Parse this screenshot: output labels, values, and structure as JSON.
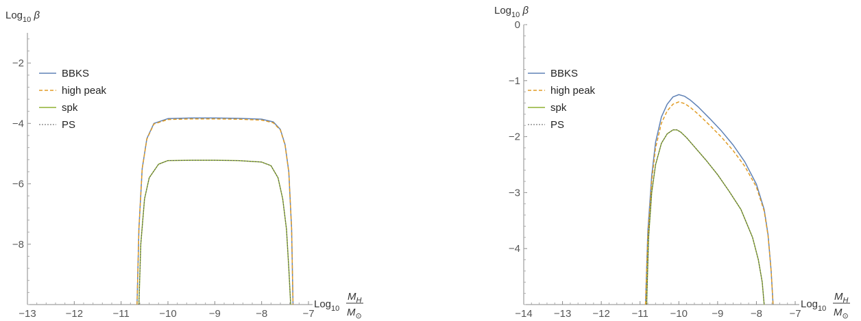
{
  "chart_data": [
    {
      "type": "line",
      "ylabel": {
        "base": "Log",
        "sub": "10",
        "sym": "β"
      },
      "xlabel": {
        "base": "Log",
        "sub": "10",
        "num": "M",
        "num_sub": "H",
        "den": "M",
        "den_sub": "⊙"
      },
      "xlim": [
        -13,
        -7
      ],
      "ylim": [
        -10,
        -1
      ],
      "x_ticks": [
        -13,
        -12,
        -11,
        -10,
        -9,
        -8,
        -7
      ],
      "x_tick_labels": [
        "−13",
        "−12",
        "−11",
        "−10",
        "−9",
        "−8",
        "−7"
      ],
      "y_ticks": [
        -8,
        -6,
        -4,
        -2
      ],
      "y_tick_labels": [
        "−8",
        "−6",
        "−4",
        "−2"
      ],
      "legend": [
        "BBKS",
        "high peak",
        "spk",
        "PS"
      ],
      "series": [
        {
          "name": "BBKS",
          "color": "#5E81B5",
          "dash": "solid",
          "x": [
            -10.66,
            -10.62,
            -10.55,
            -10.45,
            -10.3,
            -10.0,
            -9.5,
            -9.0,
            -8.5,
            -8.0,
            -7.75,
            -7.6,
            -7.5,
            -7.42,
            -7.36,
            -7.33
          ],
          "y": [
            -10.0,
            -7.5,
            -5.5,
            -4.5,
            -4.0,
            -3.84,
            -3.82,
            -3.82,
            -3.83,
            -3.86,
            -3.95,
            -4.2,
            -4.7,
            -5.6,
            -7.5,
            -10.0
          ]
        },
        {
          "name": "high peak",
          "color": "#E19C24",
          "dash": "dashed",
          "x": [
            -10.66,
            -10.62,
            -10.55,
            -10.45,
            -10.3,
            -10.0,
            -9.5,
            -9.0,
            -8.5,
            -8.0,
            -7.75,
            -7.6,
            -7.5,
            -7.42,
            -7.36,
            -7.33
          ],
          "y": [
            -10.0,
            -7.5,
            -5.5,
            -4.52,
            -4.02,
            -3.87,
            -3.85,
            -3.85,
            -3.86,
            -3.89,
            -3.98,
            -4.22,
            -4.72,
            -5.62,
            -7.5,
            -10.0
          ]
        },
        {
          "name": "spk",
          "color": "#8FB032",
          "dash": "solid",
          "x": [
            -10.62,
            -10.58,
            -10.5,
            -10.4,
            -10.2,
            -10.0,
            -9.5,
            -9.0,
            -8.5,
            -8.0,
            -7.8,
            -7.65,
            -7.55,
            -7.47,
            -7.42,
            -7.38
          ],
          "y": [
            -10.0,
            -8.0,
            -6.5,
            -5.8,
            -5.35,
            -5.23,
            -5.22,
            -5.22,
            -5.23,
            -5.28,
            -5.4,
            -5.8,
            -6.5,
            -7.5,
            -8.8,
            -10.0
          ]
        },
        {
          "name": "PS",
          "color": "#555555",
          "dash": "dotted",
          "x": [
            -10.62,
            -10.58,
            -10.5,
            -10.4,
            -10.2,
            -10.0,
            -9.5,
            -9.0,
            -8.5,
            -8.0,
            -7.8,
            -7.65,
            -7.55,
            -7.47,
            -7.42,
            -7.38
          ],
          "y": [
            -10.0,
            -8.0,
            -6.5,
            -5.8,
            -5.35,
            -5.23,
            -5.22,
            -5.22,
            -5.23,
            -5.28,
            -5.4,
            -5.8,
            -6.5,
            -7.5,
            -8.8,
            -10.0
          ]
        }
      ]
    },
    {
      "type": "line",
      "ylabel": {
        "base": "Log",
        "sub": "10",
        "sym": "β"
      },
      "xlabel": {
        "base": "Log",
        "sub": "10",
        "num": "M",
        "num_sub": "H",
        "den": "M",
        "den_sub": "⊙"
      },
      "xlim": [
        -14,
        -7
      ],
      "ylim": [
        -5,
        0
      ],
      "x_ticks": [
        -14,
        -13,
        -12,
        -11,
        -10,
        -9,
        -8,
        -7
      ],
      "x_tick_labels": [
        "−14",
        "−13",
        "−12",
        "−11",
        "−10",
        "−9",
        "−8",
        "−7"
      ],
      "y_ticks": [
        -4,
        -3,
        -2,
        -1,
        0
      ],
      "y_tick_labels": [
        "−4",
        "−3",
        "−2",
        "−1",
        "0"
      ],
      "legend": [
        "BBKS",
        "high peak",
        "spk",
        "PS"
      ],
      "series": [
        {
          "name": "BBKS",
          "color": "#5E81B5",
          "dash": "solid",
          "x": [
            -10.86,
            -10.8,
            -10.7,
            -10.6,
            -10.45,
            -10.3,
            -10.15,
            -10.0,
            -9.85,
            -9.7,
            -9.5,
            -9.2,
            -8.9,
            -8.6,
            -8.3,
            -8.0,
            -7.8,
            -7.7,
            -7.62,
            -7.57
          ],
          "y": [
            -5.0,
            -3.7,
            -2.7,
            -2.1,
            -1.65,
            -1.42,
            -1.29,
            -1.25,
            -1.28,
            -1.35,
            -1.47,
            -1.68,
            -1.9,
            -2.15,
            -2.45,
            -2.85,
            -3.3,
            -3.75,
            -4.4,
            -5.0
          ]
        },
        {
          "name": "high peak",
          "color": "#E19C24",
          "dash": "dashed",
          "x": [
            -10.86,
            -10.8,
            -10.7,
            -10.6,
            -10.45,
            -10.3,
            -10.15,
            -10.0,
            -9.85,
            -9.7,
            -9.5,
            -9.2,
            -8.9,
            -8.6,
            -8.3,
            -8.0,
            -7.8,
            -7.7,
            -7.62,
            -7.57
          ],
          "y": [
            -5.0,
            -3.8,
            -2.8,
            -2.2,
            -1.76,
            -1.54,
            -1.42,
            -1.38,
            -1.41,
            -1.48,
            -1.6,
            -1.8,
            -2.01,
            -2.25,
            -2.53,
            -2.9,
            -3.33,
            -3.77,
            -4.4,
            -5.0
          ]
        },
        {
          "name": "spk",
          "color": "#8FB032",
          "dash": "solid",
          "x": [
            -10.83,
            -10.78,
            -10.7,
            -10.6,
            -10.45,
            -10.3,
            -10.15,
            -10.05,
            -9.95,
            -9.8,
            -9.6,
            -9.3,
            -9.0,
            -8.7,
            -8.4,
            -8.1,
            -7.95,
            -7.85,
            -7.8
          ],
          "y": [
            -5.0,
            -3.8,
            -3.0,
            -2.5,
            -2.12,
            -1.95,
            -1.88,
            -1.88,
            -1.92,
            -2.02,
            -2.18,
            -2.42,
            -2.68,
            -2.98,
            -3.3,
            -3.8,
            -4.2,
            -4.6,
            -5.0
          ]
        },
        {
          "name": "PS",
          "color": "#555555",
          "dash": "dotted",
          "x": [
            -10.83,
            -10.78,
            -10.7,
            -10.6,
            -10.45,
            -10.3,
            -10.15,
            -10.05,
            -9.95,
            -9.8,
            -9.6,
            -9.3,
            -9.0,
            -8.7,
            -8.4,
            -8.1,
            -7.95,
            -7.85,
            -7.8
          ],
          "y": [
            -5.0,
            -3.8,
            -3.0,
            -2.5,
            -2.12,
            -1.95,
            -1.88,
            -1.88,
            -1.92,
            -2.02,
            -2.18,
            -2.42,
            -2.68,
            -2.98,
            -3.3,
            -3.8,
            -4.2,
            -4.6,
            -5.0
          ]
        }
      ]
    }
  ]
}
